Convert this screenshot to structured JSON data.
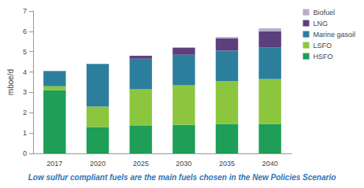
{
  "chart_data": {
    "type": "bar",
    "title": "Low sulfur compliant fuels are the main fuels chosen in the New Policies Scenario",
    "ylabel": "mboe/d",
    "categories": [
      "2017",
      "2020",
      "2025",
      "2030",
      "2035",
      "2040"
    ],
    "stacked": true,
    "grid": false,
    "legend": "right",
    "ylim": [
      0,
      7
    ],
    "yticks": [
      0,
      1,
      2,
      3,
      4,
      5,
      6,
      7
    ],
    "series": [
      {
        "name": "HSFO",
        "color": "#1e9e57",
        "values": [
          3.1,
          1.3,
          1.35,
          1.4,
          1.45,
          1.45
        ]
      },
      {
        "name": "LSFO",
        "color": "#8cc63e",
        "values": [
          0.2,
          1.0,
          1.8,
          1.95,
          2.1,
          2.2
        ]
      },
      {
        "name": "Marine gasoil",
        "color": "#2c7f9c",
        "values": [
          0.75,
          2.1,
          1.5,
          1.5,
          1.5,
          1.55
        ]
      },
      {
        "name": "LNG",
        "color": "#5c3f7c",
        "values": [
          0,
          0,
          0.15,
          0.35,
          0.6,
          0.8
        ]
      },
      {
        "name": "Biofuel",
        "color": "#b9abcb",
        "values": [
          0,
          0,
          0,
          0.02,
          0.07,
          0.15
        ]
      }
    ]
  }
}
